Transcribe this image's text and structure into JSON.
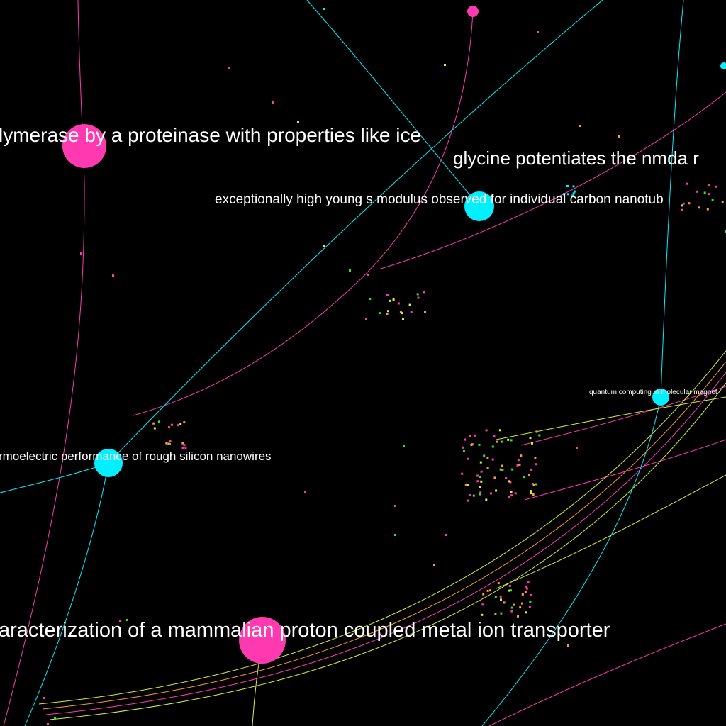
{
  "palette": {
    "background": "#000000",
    "pink": "#ff3ab0",
    "cyan": "#00f0ff",
    "green": "#22ee22",
    "orange": "#ff9933",
    "yellow": "#ddee33",
    "label": "#ffffff"
  },
  "labels": {
    "title_1": "lymerase by a proteinase with properties like ice",
    "title_2": "glycine potentiates the nmda r",
    "title_3": "exceptionally high young s modulus observed for individual carbon nanotub",
    "title_4": "quantum computing in molecular magnet",
    "title_5": "rmoelectric performance of rough silicon nanowires",
    "title_6": "aracterization of a mammalian proton coupled metal ion transporter"
  }
}
